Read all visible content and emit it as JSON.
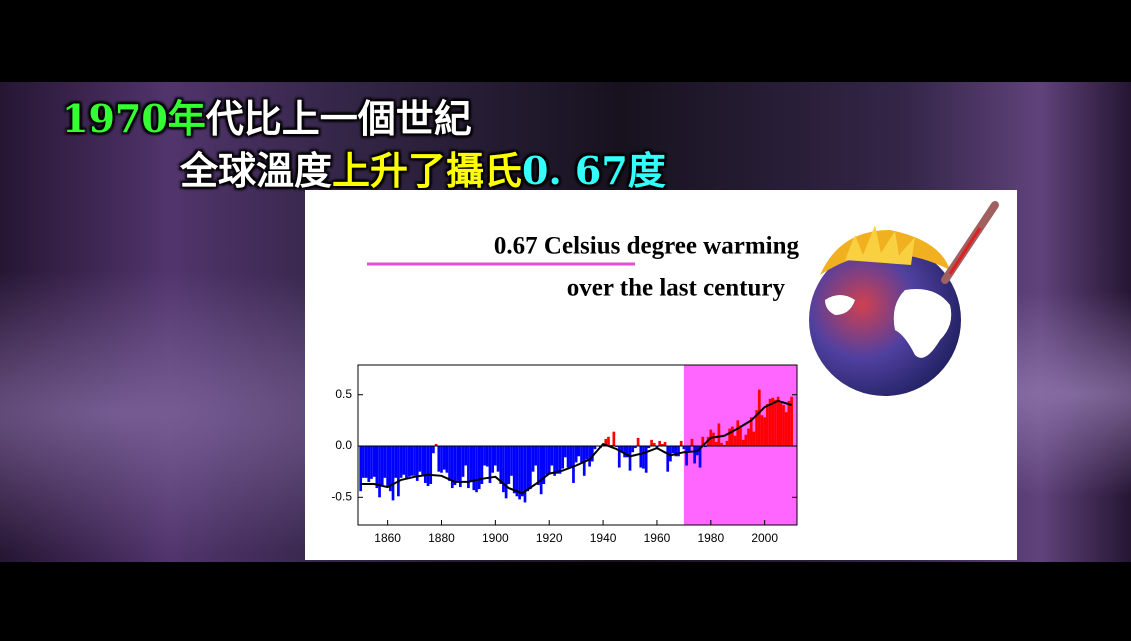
{
  "caption": [
    [
      {
        "text": "1970年",
        "color": "#33ff33"
      },
      {
        "text": "代比上一個世紀",
        "color": "#ffffff"
      }
    ],
    [
      {
        "text": "全球溫度",
        "color": "#ffffff"
      },
      {
        "text": "上升了攝氏",
        "color": "#ffff00"
      },
      {
        "text": "0. 67度",
        "color": "#33ffff"
      }
    ]
  ],
  "chart_data": {
    "type": "bar",
    "title": [
      "0.67 Celsius degree warming",
      "over the last century"
    ],
    "x": [
      1850,
      1851,
      1852,
      1853,
      1854,
      1855,
      1856,
      1857,
      1858,
      1859,
      1860,
      1861,
      1862,
      1863,
      1864,
      1865,
      1866,
      1867,
      1868,
      1869,
      1870,
      1871,
      1872,
      1873,
      1874,
      1875,
      1876,
      1877,
      1878,
      1879,
      1880,
      1881,
      1882,
      1883,
      1884,
      1885,
      1886,
      1887,
      1888,
      1889,
      1890,
      1891,
      1892,
      1893,
      1894,
      1895,
      1896,
      1897,
      1898,
      1899,
      1900,
      1901,
      1902,
      1903,
      1904,
      1905,
      1906,
      1907,
      1908,
      1909,
      1910,
      1911,
      1912,
      1913,
      1914,
      1915,
      1916,
      1917,
      1918,
      1919,
      1920,
      1921,
      1922,
      1923,
      1924,
      1925,
      1926,
      1927,
      1928,
      1929,
      1930,
      1931,
      1932,
      1933,
      1934,
      1935,
      1936,
      1937,
      1938,
      1939,
      1940,
      1941,
      1942,
      1943,
      1944,
      1945,
      1946,
      1947,
      1948,
      1949,
      1950,
      1951,
      1952,
      1953,
      1954,
      1955,
      1956,
      1957,
      1958,
      1959,
      1960,
      1961,
      1962,
      1963,
      1964,
      1965,
      1966,
      1967,
      1968,
      1969,
      1970,
      1971,
      1972,
      1973,
      1974,
      1975,
      1976,
      1977,
      1978,
      1979,
      1980,
      1981,
      1982,
      1983,
      1984,
      1985,
      1986,
      1987,
      1988,
      1989,
      1990,
      1991,
      1992,
      1993,
      1994,
      1995,
      1996,
      1997,
      1998,
      1999,
      2000,
      2001,
      2002,
      2003,
      2004,
      2005,
      2006,
      2007,
      2008,
      2009,
      2010
    ],
    "values": [
      -0.44,
      -0.31,
      -0.31,
      -0.35,
      -0.32,
      -0.3,
      -0.41,
      -0.5,
      -0.38,
      -0.31,
      -0.39,
      -0.44,
      -0.53,
      -0.31,
      -0.49,
      -0.31,
      -0.28,
      -0.32,
      -0.3,
      -0.29,
      -0.29,
      -0.34,
      -0.25,
      -0.28,
      -0.36,
      -0.39,
      -0.37,
      -0.07,
      0.02,
      -0.25,
      -0.26,
      -0.23,
      -0.26,
      -0.34,
      -0.41,
      -0.38,
      -0.34,
      -0.4,
      -0.3,
      -0.19,
      -0.41,
      -0.34,
      -0.43,
      -0.45,
      -0.42,
      -0.37,
      -0.19,
      -0.2,
      -0.36,
      -0.26,
      -0.19,
      -0.25,
      -0.37,
      -0.45,
      -0.51,
      -0.37,
      -0.29,
      -0.46,
      -0.49,
      -0.52,
      -0.49,
      -0.55,
      -0.44,
      -0.42,
      -0.25,
      -0.19,
      -0.38,
      -0.47,
      -0.37,
      -0.28,
      -0.27,
      -0.19,
      -0.29,
      -0.27,
      -0.27,
      -0.22,
      -0.11,
      -0.21,
      -0.21,
      -0.36,
      -0.16,
      -0.1,
      -0.16,
      -0.29,
      -0.13,
      -0.2,
      -0.15,
      -0.03,
      0.0,
      -0.02,
      0.01,
      0.07,
      0.09,
      0.01,
      0.14,
      -0.01,
      -0.21,
      -0.06,
      -0.11,
      -0.11,
      -0.24,
      -0.06,
      -0.02,
      0.08,
      -0.21,
      -0.22,
      -0.26,
      -0.02,
      0.06,
      0.03,
      -0.03,
      0.05,
      0.02,
      0.04,
      -0.25,
      -0.15,
      -0.07,
      -0.1,
      -0.1,
      0.05,
      -0.03,
      -0.19,
      -0.06,
      0.07,
      -0.17,
      -0.09,
      -0.21,
      0.09,
      -0.01,
      0.09,
      0.16,
      0.13,
      0.04,
      0.22,
      0.03,
      0.01,
      0.05,
      0.17,
      0.19,
      0.1,
      0.25,
      0.2,
      0.06,
      0.11,
      0.17,
      0.28,
      0.14,
      0.35,
      0.55,
      0.3,
      0.28,
      0.41,
      0.46,
      0.47,
      0.45,
      0.48,
      0.42,
      0.4,
      0.33,
      0.44,
      0.48
    ],
    "positive_color": "#ff0000",
    "negative_color": "#0000ff",
    "smooth": {
      "x": [
        1850,
        1855,
        1860,
        1865,
        1870,
        1875,
        1880,
        1885,
        1890,
        1895,
        1900,
        1905,
        1910,
        1915,
        1920,
        1925,
        1930,
        1935,
        1940,
        1945,
        1950,
        1955,
        1960,
        1965,
        1970,
        1975,
        1980,
        1985,
        1990,
        1995,
        2000,
        2005,
        2010
      ],
      "values": [
        -0.37,
        -0.37,
        -0.4,
        -0.33,
        -0.3,
        -0.28,
        -0.29,
        -0.35,
        -0.35,
        -0.32,
        -0.3,
        -0.41,
        -0.46,
        -0.37,
        -0.27,
        -0.24,
        -0.19,
        -0.13,
        0.02,
        -0.03,
        -0.1,
        -0.07,
        -0.02,
        -0.09,
        -0.06,
        -0.05,
        0.08,
        0.1,
        0.17,
        0.25,
        0.38,
        0.44,
        0.4
      ],
      "color": "#000000"
    },
    "highlight_start": 1970,
    "highlight_color": "#ff66ff",
    "xlim": [
      1849,
      2012
    ],
    "ylim": [
      -0.77,
      0.79
    ],
    "xticks": [
      1860,
      1880,
      1900,
      1920,
      1940,
      1960,
      1980,
      2000
    ],
    "yticks": [
      -0.5,
      {
        "value": 0,
        "label": "0.0"
      },
      0.5
    ]
  }
}
